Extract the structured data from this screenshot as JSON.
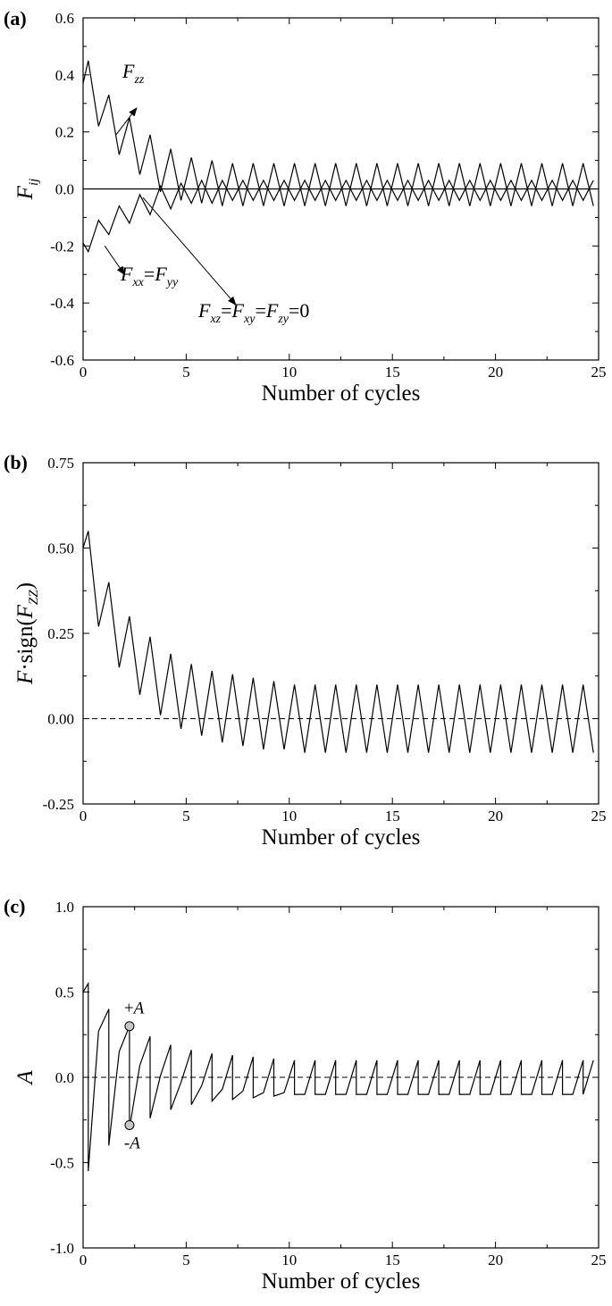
{
  "chart_data": [
    {
      "panel": "(a)",
      "type": "line",
      "xlabel": "Number of cycles",
      "ylabel": {
        "base": "F",
        "sub": "ij"
      },
      "xlim": [
        0,
        25
      ],
      "ylim": [
        -0.6,
        0.6
      ],
      "xticks": [
        0,
        5,
        10,
        15,
        20,
        25
      ],
      "yticks": [
        -0.6,
        -0.4,
        -0.2,
        0.0,
        0.2,
        0.4,
        0.6
      ],
      "ytick_labels": [
        "-0.6",
        "-0.4",
        "-0.2",
        "0.0",
        "0.2",
        "0.4",
        "0.6"
      ],
      "series": [
        {
          "x": [
            0,
            0.25,
            0.75,
            1.25,
            1.75,
            2.25,
            2.75,
            3.25,
            3.75,
            4.25,
            4.75,
            5.25,
            5.75,
            6.25,
            6.75,
            7.25,
            7.75,
            8.25,
            8.75,
            9.25,
            9.75,
            10.25,
            10.75,
            11.25,
            11.75,
            12.25,
            12.75,
            13.25,
            13.75,
            14.25,
            14.75,
            15.25,
            15.75,
            16.25,
            16.75,
            17.25,
            17.75,
            18.25,
            18.75,
            19.25,
            19.75,
            20.25,
            20.75,
            21.25,
            21.75,
            22.25,
            22.75,
            23.25,
            23.75,
            24.25,
            24.75
          ],
          "values": [
            0.37,
            0.45,
            0.22,
            0.33,
            0.12,
            0.25,
            0.05,
            0.19,
            -0.01,
            0.14,
            -0.04,
            0.11,
            -0.05,
            0.1,
            -0.06,
            0.09,
            -0.06,
            0.09,
            -0.06,
            0.09,
            -0.06,
            0.09,
            -0.06,
            0.09,
            -0.06,
            0.09,
            -0.06,
            0.09,
            -0.06,
            0.09,
            -0.06,
            0.09,
            -0.06,
            0.09,
            -0.06,
            0.09,
            -0.06,
            0.09,
            -0.06,
            0.09,
            -0.06,
            0.09,
            -0.06,
            0.09,
            -0.06,
            0.09,
            -0.06,
            0.09,
            -0.06,
            0.09,
            -0.06
          ]
        },
        {
          "x": [
            0,
            0.25,
            0.75,
            1.25,
            1.75,
            2.25,
            2.75,
            3.25,
            3.75,
            4.25,
            4.75,
            5.25,
            5.75,
            6.25,
            6.75,
            7.25,
            7.75,
            8.25,
            8.75,
            9.25,
            9.75,
            10.25,
            10.75,
            11.25,
            11.75,
            12.25,
            12.75,
            13.25,
            13.75,
            14.25,
            14.75,
            15.25,
            15.75,
            16.25,
            16.75,
            17.25,
            17.75,
            18.25,
            18.75,
            19.25,
            19.75,
            20.25,
            20.75,
            21.25,
            21.75,
            22.25,
            22.75,
            23.25,
            23.75,
            24.25,
            24.75
          ],
          "values": [
            -0.19,
            -0.22,
            -0.11,
            -0.16,
            -0.06,
            -0.12,
            -0.02,
            -0.09,
            0.01,
            -0.07,
            0.02,
            -0.05,
            0.03,
            -0.05,
            0.03,
            -0.04,
            0.03,
            -0.04,
            0.03,
            -0.04,
            0.03,
            -0.04,
            0.03,
            -0.04,
            0.03,
            -0.04,
            0.03,
            -0.04,
            0.03,
            -0.04,
            0.03,
            -0.04,
            0.03,
            -0.04,
            0.03,
            -0.04,
            0.03,
            -0.04,
            0.03,
            -0.04,
            0.03,
            -0.04,
            0.03,
            -0.04,
            0.03,
            -0.04,
            0.03,
            -0.04,
            0.03,
            -0.04,
            0.03
          ]
        },
        {
          "x": [
            0,
            25
          ],
          "values": [
            0,
            0
          ]
        }
      ],
      "annotations": [
        {
          "parts": [
            [
              "F",
              "zz"
            ]
          ],
          "suffix": ""
        },
        {
          "parts": [
            [
              "F",
              "xx"
            ],
            [
              "=F",
              "yy"
            ]
          ],
          "suffix": ""
        },
        {
          "parts": [
            [
              "F",
              "xz"
            ],
            [
              "=F",
              "xy"
            ],
            [
              "=F",
              "zy"
            ]
          ],
          "suffix": "=0"
        }
      ]
    },
    {
      "panel": "(b)",
      "type": "line",
      "xlabel": "Number of cycles",
      "ylabel": {
        "pre": "F·sign(F",
        "sub": "ZZ",
        "post": ")"
      },
      "xlim": [
        0,
        25
      ],
      "ylim": [
        -0.25,
        0.75
      ],
      "xticks": [
        0,
        5,
        10,
        15,
        20,
        25
      ],
      "yticks": [
        -0.25,
        0.0,
        0.25,
        0.5,
        0.75
      ],
      "ytick_labels": [
        "-0.25",
        "0.00",
        "0.25",
        "0.50",
        "0.75"
      ],
      "reference_line": 0,
      "series": [
        {
          "x": [
            0,
            0.25,
            0.75,
            1.25,
            1.75,
            2.25,
            2.75,
            3.25,
            3.75,
            4.25,
            4.75,
            5.25,
            5.75,
            6.25,
            6.75,
            7.25,
            7.75,
            8.25,
            8.75,
            9.25,
            9.75,
            10.25,
            10.75,
            11.25,
            11.75,
            12.25,
            12.75,
            13.25,
            13.75,
            14.25,
            14.75,
            15.25,
            15.75,
            16.25,
            16.75,
            17.25,
            17.75,
            18.25,
            18.75,
            19.25,
            19.75,
            20.25,
            20.75,
            21.25,
            21.75,
            22.25,
            22.75,
            23.25,
            23.75,
            24.25,
            24.75
          ],
          "values": [
            0.5,
            0.55,
            0.27,
            0.4,
            0.15,
            0.3,
            0.07,
            0.24,
            0.01,
            0.19,
            -0.03,
            0.16,
            -0.05,
            0.14,
            -0.07,
            0.13,
            -0.08,
            0.12,
            -0.09,
            0.11,
            -0.09,
            0.1,
            -0.1,
            0.1,
            -0.1,
            0.1,
            -0.1,
            0.1,
            -0.1,
            0.1,
            -0.1,
            0.1,
            -0.1,
            0.1,
            -0.1,
            0.1,
            -0.1,
            0.1,
            -0.1,
            0.1,
            -0.1,
            0.1,
            -0.1,
            0.1,
            -0.1,
            0.1,
            -0.1,
            0.1,
            -0.1,
            0.1,
            -0.1
          ]
        }
      ]
    },
    {
      "panel": "(c)",
      "type": "line",
      "xlabel": "Number of cycles",
      "ylabel": "A",
      "xlim": [
        0,
        25
      ],
      "ylim": [
        -1.0,
        1.0
      ],
      "xticks": [
        0,
        5,
        10,
        15,
        20,
        25
      ],
      "yticks": [
        -1.0,
        -0.5,
        0.0,
        0.5,
        1.0
      ],
      "ytick_labels": [
        "-1.0",
        "-0.5",
        "0.0",
        "0.5",
        "1.0"
      ],
      "reference_line": 0,
      "series": [
        {
          "x": [
            0,
            0.25,
            0.25,
            0.75,
            1.25,
            1.25,
            1.75,
            2.25,
            2.25,
            2.75,
            3.25,
            3.25,
            3.75,
            4.25,
            4.25,
            4.75,
            5.25,
            5.25,
            5.75,
            6.25,
            6.25,
            6.75,
            7.25,
            7.25,
            7.75,
            8.25,
            8.25,
            8.75,
            9.25,
            9.25,
            9.75,
            10.25,
            10.25,
            10.75,
            11.25,
            11.25,
            11.75,
            12.25,
            12.25,
            12.75,
            13.25,
            13.25,
            13.75,
            14.25,
            14.25,
            14.75,
            15.25,
            15.25,
            15.75,
            16.25,
            16.25,
            16.75,
            17.25,
            17.25,
            17.75,
            18.25,
            18.25,
            18.75,
            19.25,
            19.25,
            19.75,
            20.25,
            20.25,
            20.75,
            21.25,
            21.25,
            21.75,
            22.25,
            22.25,
            22.75,
            23.25,
            23.25,
            23.75,
            24.25,
            24.25,
            24.75
          ],
          "values": [
            0.5,
            0.55,
            -0.55,
            0.27,
            0.4,
            -0.4,
            0.15,
            0.3,
            -0.3,
            0.07,
            0.24,
            -0.24,
            0.01,
            0.19,
            -0.19,
            -0.03,
            0.16,
            -0.16,
            -0.05,
            0.14,
            -0.14,
            -0.07,
            0.13,
            -0.13,
            -0.08,
            0.12,
            -0.12,
            -0.09,
            0.11,
            -0.11,
            -0.09,
            0.1,
            -0.1,
            -0.1,
            0.1,
            -0.1,
            -0.1,
            0.1,
            -0.1,
            -0.1,
            0.1,
            -0.1,
            -0.1,
            0.1,
            -0.1,
            -0.1,
            0.1,
            -0.1,
            -0.1,
            0.1,
            -0.1,
            -0.1,
            0.1,
            -0.1,
            -0.1,
            0.1,
            -0.1,
            -0.1,
            0.1,
            -0.1,
            -0.1,
            0.1,
            -0.1,
            -0.1,
            0.1,
            -0.1,
            -0.1,
            0.1,
            -0.1,
            -0.1,
            0.1,
            -0.1,
            -0.1,
            0.1,
            -0.1,
            0.1
          ]
        }
      ],
      "markers": [
        {
          "label": "+A",
          "x": 2.25,
          "y": 0.3
        },
        {
          "label": "-A",
          "x": 2.25,
          "y": -0.28
        }
      ]
    }
  ]
}
